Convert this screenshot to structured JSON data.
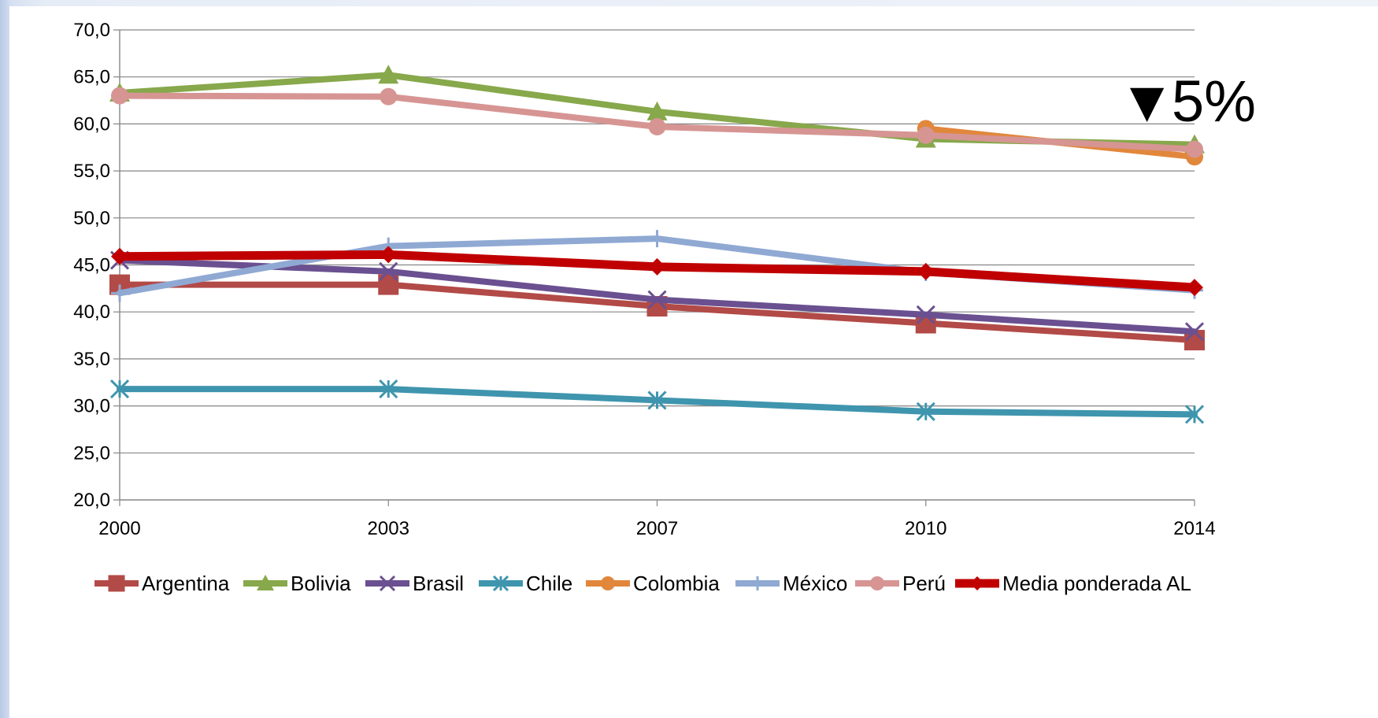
{
  "chart_data": {
    "type": "line",
    "title": "",
    "xlabel": "",
    "ylabel": "",
    "x": [
      "2000",
      "2003",
      "2007",
      "2010",
      "2014"
    ],
    "ylim": [
      20,
      70
    ],
    "yticks": [
      "70,0",
      "65,0",
      "60,0",
      "55,0",
      "50,0",
      "45,0",
      "40,0",
      "35,0",
      "30,0",
      "25,0",
      "20,0"
    ],
    "grid": true,
    "legend_position": "bottom",
    "annotation": {
      "arrow": "▼",
      "text": "5%"
    },
    "series": [
      {
        "name": "Argentina",
        "color": "#b24a47",
        "marker": "square",
        "values": [
          42.9,
          42.9,
          40.6,
          38.8,
          37.0
        ]
      },
      {
        "name": "Bolivia",
        "color": "#87a84b",
        "marker": "triangle",
        "values": [
          63.3,
          65.2,
          61.3,
          58.4,
          57.8
        ]
      },
      {
        "name": "Brasil",
        "color": "#6a5090",
        "marker": "x",
        "values": [
          45.5,
          44.3,
          41.3,
          39.7,
          37.9
        ]
      },
      {
        "name": "Chile",
        "color": "#3f95ad",
        "marker": "asterisk",
        "values": [
          31.8,
          31.8,
          30.6,
          29.4,
          29.1
        ]
      },
      {
        "name": "Colombia",
        "color": "#e1873c",
        "marker": "circle",
        "values": [
          null,
          null,
          null,
          59.5,
          56.5
        ]
      },
      {
        "name": "México",
        "color": "#8fa9d3",
        "marker": "plus",
        "values": [
          42.0,
          47.0,
          47.8,
          44.2,
          42.3
        ]
      },
      {
        "name": "Perú",
        "color": "#d69593",
        "marker": "circle",
        "values": [
          63.0,
          62.9,
          59.7,
          58.8,
          57.3
        ]
      },
      {
        "name": "Media ponderada AL",
        "color": "#c00000",
        "marker": "diamond",
        "values": [
          45.9,
          46.1,
          44.8,
          44.3,
          42.6
        ]
      }
    ]
  }
}
